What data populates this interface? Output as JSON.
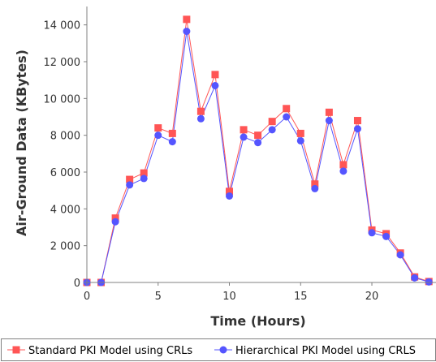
{
  "chart_data": {
    "type": "line",
    "title": "",
    "xlabel": "Time (Hours)",
    "ylabel": "Air-Ground Data (KBytes)",
    "xlim": [
      0,
      24.5
    ],
    "ylim": [
      0,
      15000
    ],
    "xticks": [
      0,
      5,
      10,
      15,
      20
    ],
    "xtick_labels": [
      "0",
      "5",
      "10",
      "15",
      "20"
    ],
    "yticks": [
      0,
      2000,
      4000,
      6000,
      8000,
      10000,
      12000,
      14000
    ],
    "ytick_labels": [
      "0",
      "2 000",
      "4 000",
      "6 000",
      "8 000",
      "10 000",
      "12 000",
      "14 000"
    ],
    "grid": false,
    "legend_position": "bottom",
    "x": [
      0,
      1,
      2,
      3,
      4,
      5,
      6,
      7,
      8,
      9,
      10,
      11,
      12,
      13,
      14,
      15,
      16,
      17,
      18,
      19,
      20,
      21,
      22,
      23,
      24
    ],
    "series": [
      {
        "name": "Standard PKI Model using CRLs",
        "color": "#ff5555",
        "marker": "square",
        "values": [
          0,
          0,
          3500,
          5600,
          5950,
          8400,
          8100,
          14300,
          9300,
          11300,
          4950,
          8300,
          8000,
          8750,
          9450,
          8100,
          5350,
          9250,
          6400,
          8800,
          2850,
          2650,
          1600,
          300,
          50
        ]
      },
      {
        "name": "Hierarchical PKI Model using CRLS",
        "color": "#5555ff",
        "marker": "circle",
        "values": [
          0,
          0,
          3300,
          5300,
          5650,
          8000,
          7650,
          13650,
          8900,
          10700,
          4700,
          7900,
          7600,
          8300,
          9000,
          7700,
          5100,
          8800,
          6050,
          8350,
          2700,
          2500,
          1500,
          250,
          30
        ]
      }
    ]
  }
}
